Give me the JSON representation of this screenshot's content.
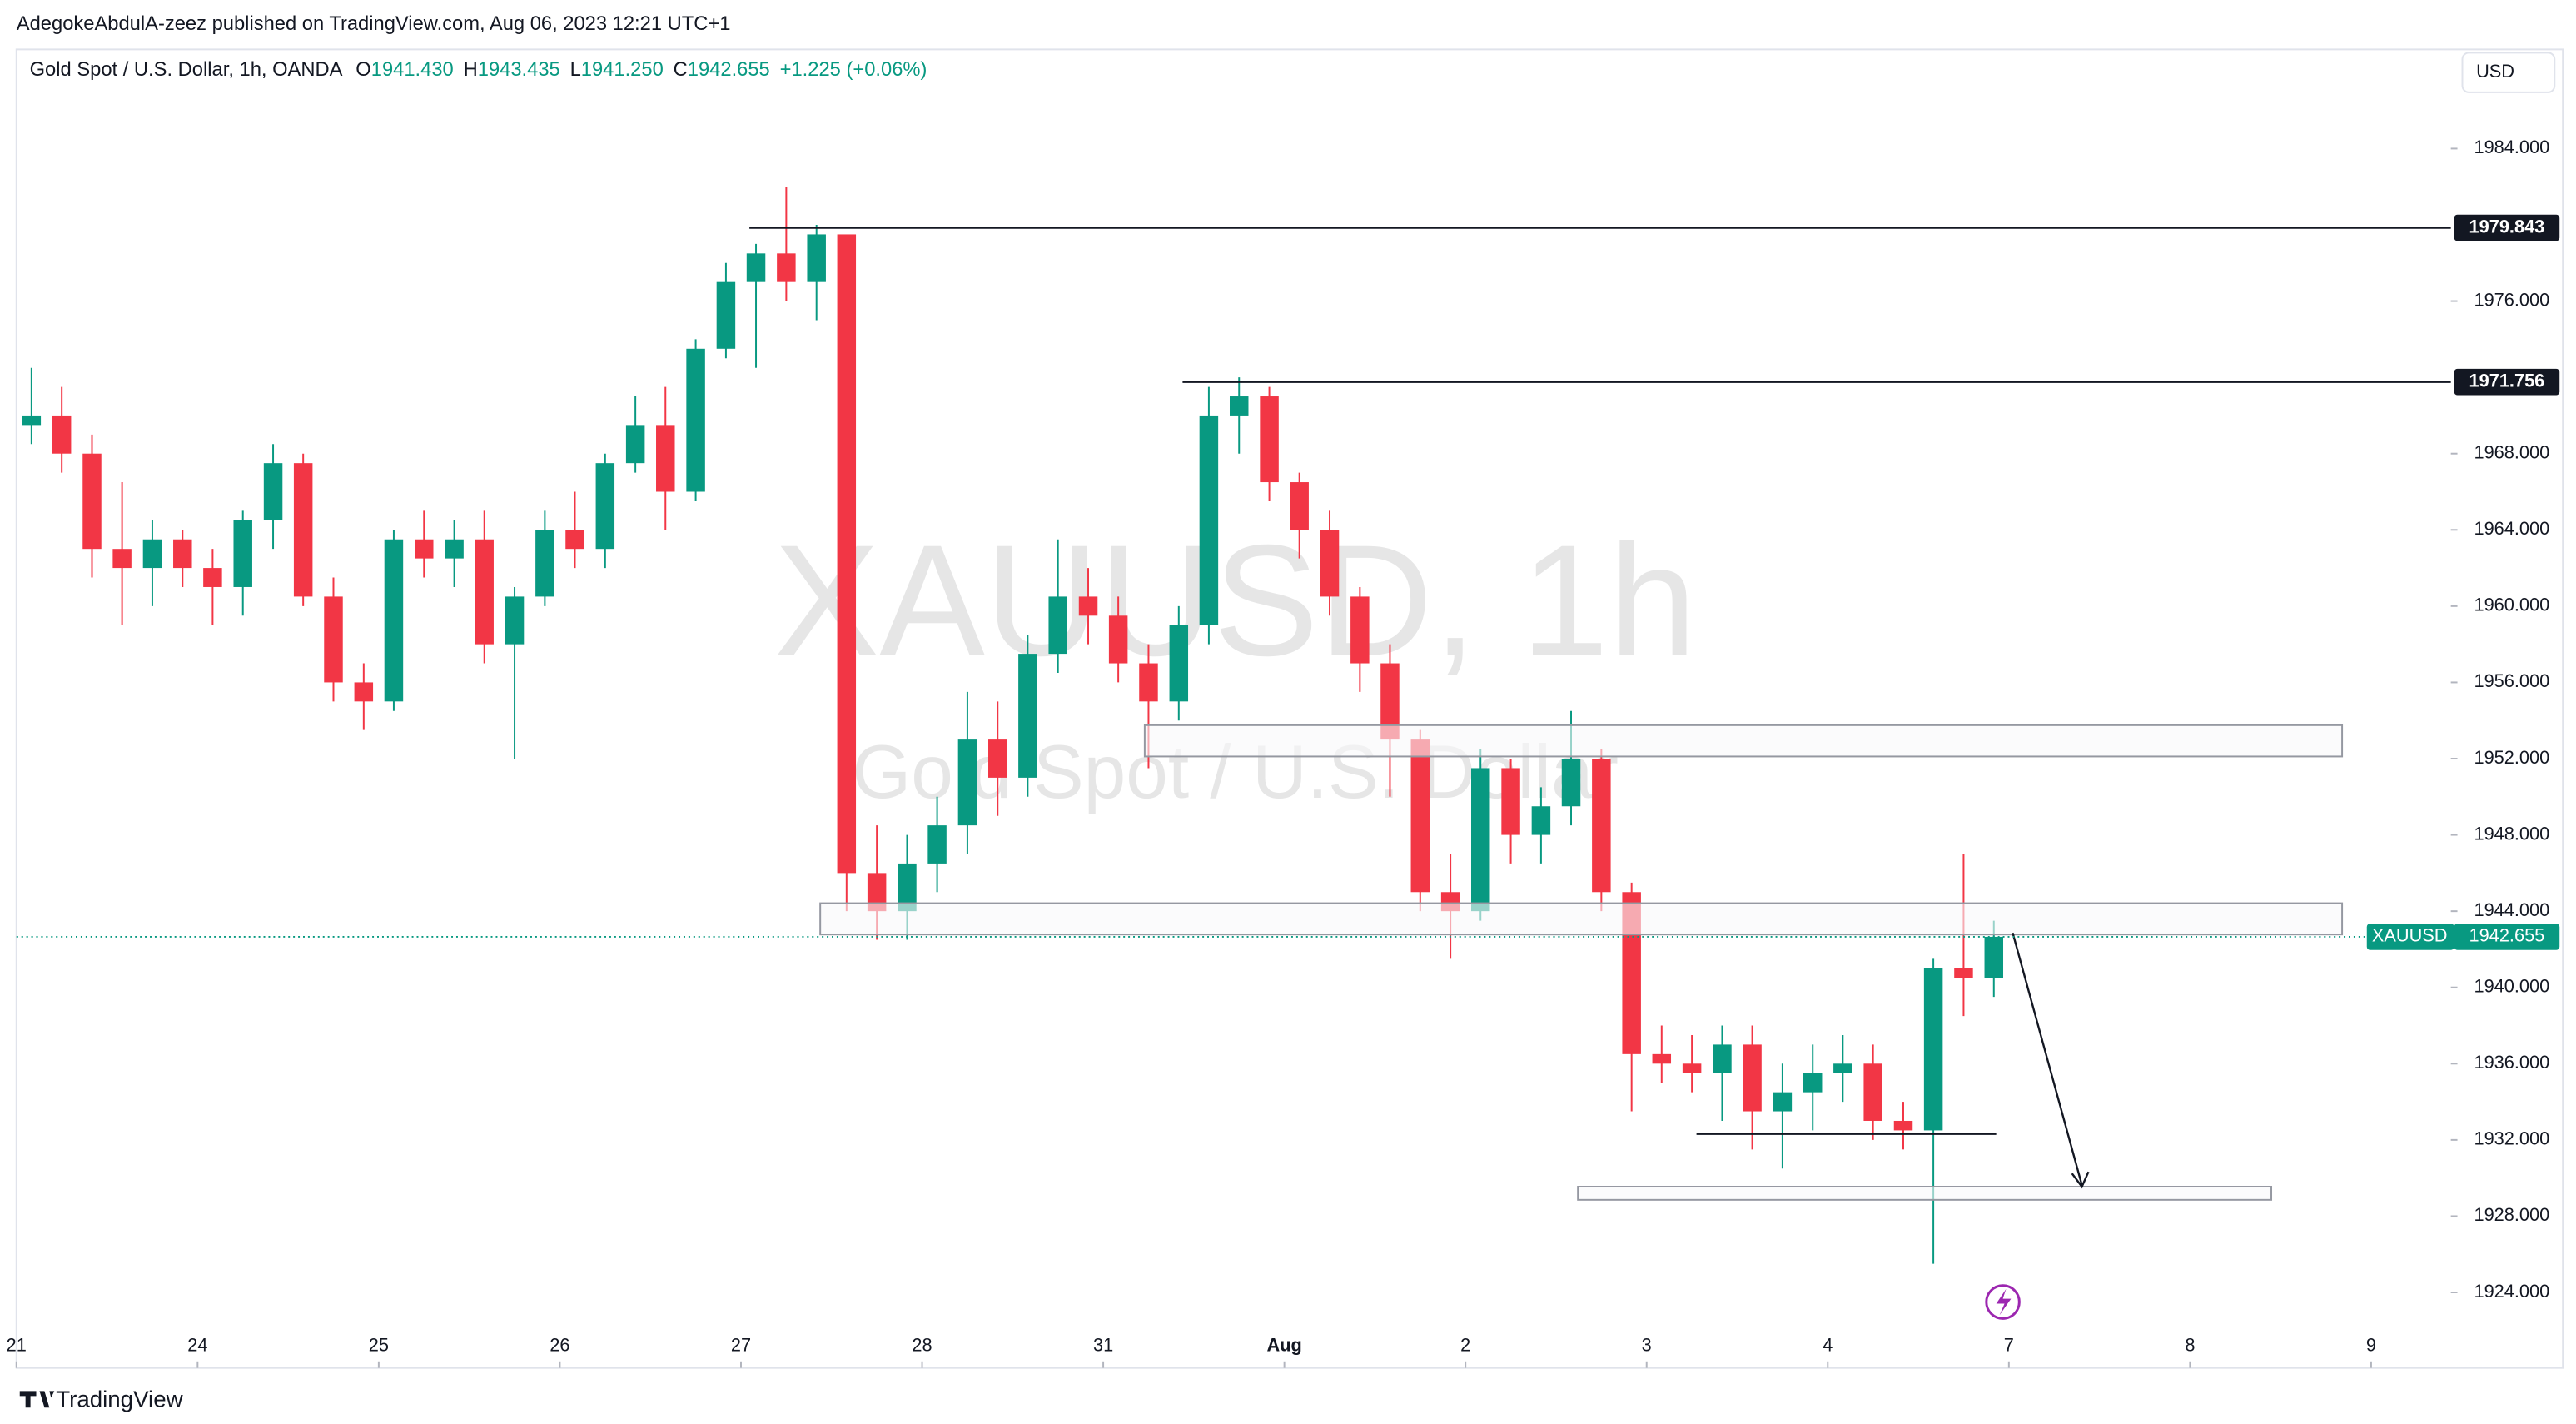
{
  "header": {
    "publisher": "AdegokeAbdulA-zeez published on TradingView.com, Aug 06, 2023 12:21 UTC+1",
    "currency": "USD",
    "brand": "TradingView"
  },
  "legend": {
    "title": "Gold Spot / U.S. Dollar, 1h, OANDA",
    "ohlc": [
      {
        "label": "O",
        "value": "1941.430"
      },
      {
        "label": "H",
        "value": "1943.435"
      },
      {
        "label": "L",
        "value": "1941.250"
      },
      {
        "label": "C",
        "value": "1942.655"
      }
    ],
    "change": "+1.225 (+0.06%)"
  },
  "watermark": {
    "symbol": "XAUUSD, 1h",
    "name": "Gold Spot / U.S. Dollar"
  },
  "chart_data": {
    "type": "candlestick",
    "up_color": "#089981",
    "down_color": "#f23645",
    "x": [
      0.083,
      0.25,
      0.417,
      0.583,
      0.75,
      0.917,
      1.083,
      1.25,
      1.417,
      1.583,
      1.75,
      1.917,
      2.083,
      2.25,
      2.417,
      2.583,
      2.75,
      2.917,
      3.083,
      3.25,
      3.417,
      3.583,
      3.75,
      3.917,
      4.083,
      4.25,
      4.417,
      4.583,
      4.75,
      4.917,
      5.083,
      5.25,
      5.417,
      5.583,
      5.75,
      5.917,
      6.083,
      6.25,
      6.417,
      6.583,
      6.75,
      6.917,
      7.083,
      7.25,
      7.417,
      7.583,
      7.75,
      7.917,
      8.083,
      8.25,
      8.417,
      8.583,
      8.75,
      8.917,
      9.083,
      9.25,
      9.417,
      9.583,
      9.75,
      9.917,
      10.083,
      10.25,
      10.417,
      10.583,
      10.75,
      10.917
    ],
    "ohlc": [
      [
        1969.5,
        1972.5,
        1968.5,
        1970
      ],
      [
        1970,
        1971.5,
        1967,
        1968
      ],
      [
        1968,
        1969,
        1961.5,
        1963
      ],
      [
        1963,
        1966.5,
        1959,
        1962
      ],
      [
        1962,
        1964.5,
        1960,
        1963.5
      ],
      [
        1963.5,
        1964,
        1961,
        1962
      ],
      [
        1962,
        1963,
        1959,
        1961
      ],
      [
        1961,
        1965,
        1959.5,
        1964.5
      ],
      [
        1964.5,
        1968.5,
        1963,
        1967.5
      ],
      [
        1967.5,
        1968,
        1960,
        1960.5
      ],
      [
        1960.5,
        1961.5,
        1955,
        1956
      ],
      [
        1956,
        1957,
        1953.5,
        1955
      ],
      [
        1955,
        1964,
        1954.5,
        1963.5
      ],
      [
        1963.5,
        1965,
        1961.5,
        1962.5
      ],
      [
        1962.5,
        1964.5,
        1961,
        1963.5
      ],
      [
        1963.5,
        1965,
        1957,
        1958
      ],
      [
        1958,
        1961,
        1952,
        1960.5
      ],
      [
        1960.5,
        1965,
        1960,
        1964
      ],
      [
        1964,
        1966,
        1962,
        1963
      ],
      [
        1963,
        1968,
        1962,
        1967.5
      ],
      [
        1967.5,
        1971,
        1967,
        1969.5
      ],
      [
        1969.5,
        1971.5,
        1964,
        1966
      ],
      [
        1966,
        1974,
        1965.5,
        1973.5
      ],
      [
        1973.5,
        1978,
        1973,
        1977
      ],
      [
        1977,
        1979,
        1972.5,
        1978.5
      ],
      [
        1978.5,
        1982,
        1976,
        1977
      ],
      [
        1977,
        1980,
        1975,
        1979.5
      ],
      [
        1979.5,
        1979.5,
        1944,
        1946
      ],
      [
        1946,
        1948.5,
        1942.5,
        1944
      ],
      [
        1944,
        1948,
        1942.5,
        1946.5
      ],
      [
        1946.5,
        1950,
        1945,
        1948.5
      ],
      [
        1948.5,
        1955.5,
        1947,
        1953
      ],
      [
        1953,
        1955,
        1949,
        1951
      ],
      [
        1951,
        1958.5,
        1950,
        1957.5
      ],
      [
        1957.5,
        1963.5,
        1956.5,
        1960.5
      ],
      [
        1960.5,
        1962,
        1958,
        1959.5
      ],
      [
        1959.5,
        1960.5,
        1956,
        1957
      ],
      [
        1957,
        1958,
        1951.5,
        1955
      ],
      [
        1955,
        1960,
        1954,
        1959
      ],
      [
        1959,
        1971.5,
        1958,
        1970
      ],
      [
        1970,
        1972,
        1968,
        1971
      ],
      [
        1971,
        1971.5,
        1965.5,
        1966.5
      ],
      [
        1966.5,
        1967,
        1962.5,
        1964
      ],
      [
        1964,
        1965,
        1959.5,
        1960.5
      ],
      [
        1960.5,
        1961,
        1955.5,
        1957
      ],
      [
        1957,
        1958,
        1950,
        1953
      ],
      [
        1953,
        1953.5,
        1944,
        1945
      ],
      [
        1945,
        1947,
        1941.5,
        1944
      ],
      [
        1944,
        1952.5,
        1943.5,
        1951.5
      ],
      [
        1951.5,
        1952,
        1946.5,
        1948
      ],
      [
        1948,
        1950.5,
        1946.5,
        1949.5
      ],
      [
        1949.5,
        1954.5,
        1948.5,
        1952
      ],
      [
        1952,
        1952.5,
        1944,
        1945
      ],
      [
        1945,
        1945.5,
        1933.5,
        1936.5
      ],
      [
        1936.5,
        1938,
        1935,
        1936
      ],
      [
        1936,
        1937.5,
        1934.5,
        1935.5
      ],
      [
        1935.5,
        1938,
        1933,
        1937
      ],
      [
        1937,
        1938,
        1931.5,
        1933.5
      ],
      [
        1933.5,
        1936,
        1930.5,
        1934.5
      ],
      [
        1934.5,
        1937,
        1932.5,
        1935.5
      ],
      [
        1935.5,
        1937.5,
        1934,
        1936
      ],
      [
        1936,
        1937,
        1932,
        1933
      ],
      [
        1933,
        1934,
        1931.5,
        1932.5
      ],
      [
        1932.5,
        1941.5,
        1925.5,
        1941
      ],
      [
        1941,
        1947,
        1938.5,
        1940.5
      ],
      [
        1940.5,
        1943.5,
        1939.5,
        1942.655
      ]
    ],
    "xlim": [
      0,
      13.44
    ],
    "xticks": [
      {
        "value": 0,
        "label": "21"
      },
      {
        "value": 1,
        "label": "24"
      },
      {
        "value": 2,
        "label": "25"
      },
      {
        "value": 3,
        "label": "26"
      },
      {
        "value": 4,
        "label": "27"
      },
      {
        "value": 5,
        "label": "28"
      },
      {
        "value": 6,
        "label": "31"
      },
      {
        "value": 7,
        "label": "Aug"
      },
      {
        "value": 8,
        "label": "2"
      },
      {
        "value": 9,
        "label": "3"
      },
      {
        "value": 10,
        "label": "4"
      },
      {
        "value": 11,
        "label": "7"
      },
      {
        "value": 12,
        "label": "8"
      },
      {
        "value": 13,
        "label": "9"
      }
    ],
    "ylim": [
      1922.2,
      1989.2
    ],
    "yticks": [
      {
        "value": 1924,
        "label": "1924.000"
      },
      {
        "value": 1928,
        "label": "1928.000"
      },
      {
        "value": 1932,
        "label": "1932.000"
      },
      {
        "value": 1936,
        "label": "1936.000"
      },
      {
        "value": 1940,
        "label": "1940.000"
      },
      {
        "value": 1944,
        "label": "1944.000"
      },
      {
        "value": 1948,
        "label": "1948.000"
      },
      {
        "value": 1952,
        "label": "1952.000"
      },
      {
        "value": 1956,
        "label": "1956.000"
      },
      {
        "value": 1960,
        "label": "1960.000"
      },
      {
        "value": 1964,
        "label": "1964.000"
      },
      {
        "value": 1968,
        "label": "1968.000"
      },
      {
        "value": 1976,
        "label": "1976.000"
      },
      {
        "value": 1984,
        "label": "1984.000"
      }
    ],
    "hlines": [
      {
        "value": 1979.843,
        "label": "1979.843"
      },
      {
        "value": 1971.756,
        "label": "1971.756"
      }
    ],
    "last_price": {
      "symbol": "XAUUSD",
      "value": 1942.655,
      "label": "1942.655"
    }
  }
}
